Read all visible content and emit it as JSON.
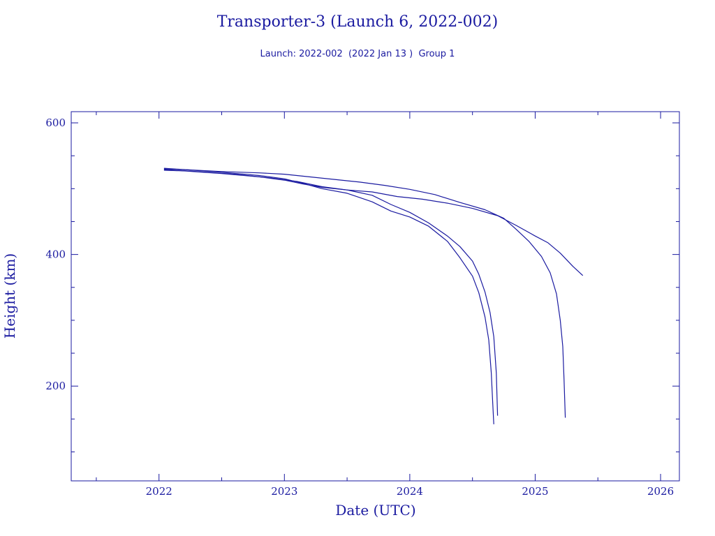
{
  "colors": {
    "ink": "#1a1aa0",
    "background": "#ffffff"
  },
  "chart_data": {
    "type": "line",
    "title": "Transporter-3 (Launch 6, 2022-002)",
    "subtitle": "Launch: 2022-002  (2022 Jan 13 )  Group 1",
    "xlabel": "Date (UTC)",
    "ylabel": "Height (km)",
    "xlim": [
      2021.3,
      2026.15
    ],
    "ylim": [
      56,
      617
    ],
    "x_ticks": [
      2022,
      2023,
      2024,
      2025,
      2026
    ],
    "x_tick_labels": [
      "2022",
      "2023",
      "2024",
      "2025",
      "2026"
    ],
    "x_minor_ticks": [
      2021.5,
      2022.5,
      2023.5,
      2024.5,
      2025.5
    ],
    "y_ticks": [
      200,
      400,
      600
    ],
    "y_tick_labels": [
      "200",
      "400",
      "600"
    ],
    "y_minor_ticks": [
      100,
      150,
      250,
      300,
      350,
      450,
      500,
      550
    ],
    "grid": false,
    "series": [
      {
        "x": [
          2022.04,
          2022.2,
          2022.5,
          2022.8,
          2023.0,
          2023.15,
          2023.3,
          2023.5,
          2023.7,
          2023.85,
          2024.0,
          2024.15,
          2024.3,
          2024.4,
          2024.5,
          2024.55,
          2024.6,
          2024.63,
          2024.65,
          2024.66,
          2024.67
        ],
        "y": [
          531,
          529,
          525,
          520,
          515,
          508,
          500,
          493,
          480,
          466,
          457,
          443,
          420,
          395,
          367,
          342,
          305,
          270,
          220,
          180,
          142
        ]
      },
      {
        "x": [
          2022.04,
          2022.2,
          2022.5,
          2022.8,
          2023.0,
          2023.15,
          2023.3,
          2023.5,
          2023.7,
          2023.85,
          2024.0,
          2024.15,
          2024.3,
          2024.4,
          2024.5,
          2024.55,
          2024.6,
          2024.64,
          2024.67,
          2024.69,
          2024.7
        ],
        "y": [
          528,
          527,
          523,
          518,
          513,
          507,
          502,
          498,
          490,
          476,
          464,
          448,
          428,
          412,
          390,
          370,
          343,
          312,
          275,
          220,
          155
        ]
      },
      {
        "x": [
          2022.04,
          2022.2,
          2022.5,
          2022.8,
          2023.0,
          2023.2,
          2023.4,
          2023.6,
          2023.8,
          2024.0,
          2024.2,
          2024.4,
          2024.6,
          2024.75,
          2024.85,
          2024.95,
          2025.05,
          2025.12,
          2025.17,
          2025.2,
          2025.22,
          2025.23,
          2025.24
        ],
        "y": [
          530,
          529,
          526,
          524,
          522,
          518,
          514,
          510,
          505,
          499,
          491,
          479,
          468,
          455,
          438,
          420,
          397,
          372,
          340,
          300,
          260,
          210,
          152
        ]
      },
      {
        "x": [
          2022.04,
          2022.3,
          2022.6,
          2022.9,
          2023.1,
          2023.3,
          2023.5,
          2023.7,
          2023.9,
          2024.1,
          2024.3,
          2024.5,
          2024.7,
          2024.85,
          2025.0,
          2025.1,
          2025.2,
          2025.3,
          2025.38
        ],
        "y": [
          529,
          526,
          522,
          516,
          511,
          503,
          498,
          495,
          488,
          484,
          478,
          470,
          459,
          444,
          428,
          418,
          402,
          382,
          368
        ]
      }
    ]
  }
}
